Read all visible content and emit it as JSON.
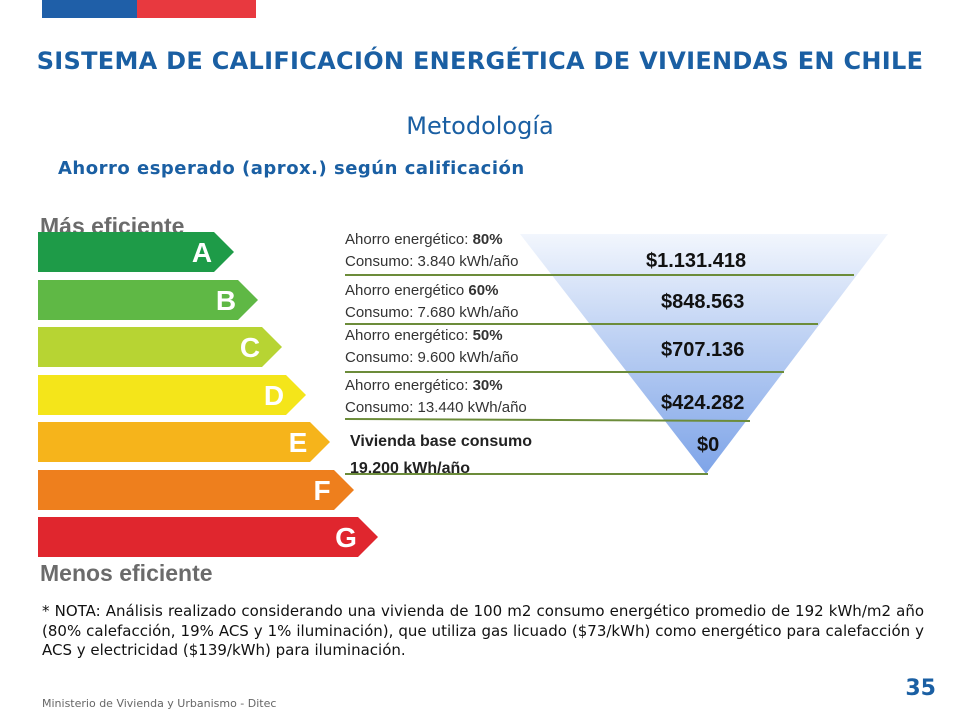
{
  "header": {
    "title": "SISTEMA DE CALIFICACIÓN ENERGÉTICA DE VIVIENDAS EN CHILE",
    "subtitle": "Metodología",
    "flag_colors": [
      "#1f5fa8",
      "#e8393f"
    ]
  },
  "section_title": "Ahorro esperado (aprox.) según calificación",
  "scale": {
    "top_label": "Más eficiente",
    "bottom_label": "Menos eficiente",
    "ratings": [
      {
        "letter": "A",
        "color": "#1e9b48"
      },
      {
        "letter": "B",
        "color": "#5fb845"
      },
      {
        "letter": "C",
        "color": "#b7d433"
      },
      {
        "letter": "D",
        "color": "#f4e51a"
      },
      {
        "letter": "E",
        "color": "#f6b41b"
      },
      {
        "letter": "F",
        "color": "#ee7f1d"
      },
      {
        "letter": "G",
        "color": "#e0262e"
      }
    ]
  },
  "steps": [
    {
      "line1_prefix": "Ahorro energético: ",
      "pct": "80%",
      "line2": "Consumo: 3.840 kWh/año",
      "amount": "$1.131.418"
    },
    {
      "line1_prefix": "Ahorro energético ",
      "pct": "60%",
      "line2": "Consumo: 7.680 kWh/año",
      "amount": "$848.563"
    },
    {
      "line1_prefix": "Ahorro energético: ",
      "pct": "50%",
      "line2": "Consumo: 9.600 kWh/año",
      "amount": "$707.136"
    },
    {
      "line1_prefix": "Ahorro energético: ",
      "pct": "30%",
      "line2": "Consumo: 13.440 kWh/año",
      "amount": "$424.282"
    }
  ],
  "base": {
    "text": "Vivienda base consumo 19.200 kWh/año",
    "amount": "$0"
  },
  "note": "* NOTA: Análisis realizado considerando una vivienda de 100 m2 consumo energético promedio de 192 kWh/m2 año (80% calefacción, 19% ACS y 1% iluminación), que utiliza gas licuado ($73/kWh) como energético para calefacción y ACS y electricidad ($139/kWh) para iluminación.",
  "footer": "Ministerio de Vivienda y Urbanismo - Ditec",
  "page_number": "35"
}
